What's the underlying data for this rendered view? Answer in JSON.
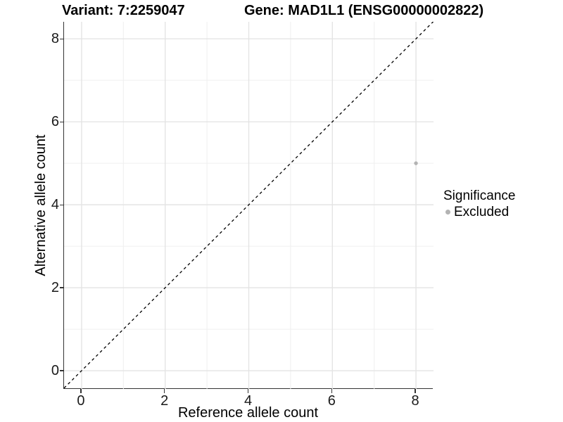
{
  "titles": {
    "variant": "Variant: 7:2259047",
    "gene": "Gene: MAD1L1 (ENSG00000002822)"
  },
  "legend": {
    "title": "Significance",
    "items": [
      {
        "label": "Excluded",
        "color": "#b3b3b3"
      }
    ]
  },
  "colors": {
    "background": "#ffffff",
    "grid_major": "#e4e4e4",
    "grid_minor": "#efefef",
    "axis_line": "#333333",
    "reference_line": "#000000",
    "point": "#b3b3b3",
    "text": "#000000"
  },
  "chart_data": {
    "type": "scatter",
    "title": "Variant: 7:2259047   Gene: MAD1L1 (ENSG00000002822)",
    "xlabel": "Reference allele count",
    "ylabel": "Alternative allele count",
    "xlim": [
      -0.42,
      8.42
    ],
    "ylim": [
      -0.44,
      8.41
    ],
    "x_ticks": [
      0,
      2,
      4,
      6,
      8
    ],
    "y_ticks": [
      0,
      2,
      4,
      6,
      8
    ],
    "x_minor_ticks": [
      1,
      3,
      5,
      7
    ],
    "y_minor_ticks": [
      1,
      3,
      5,
      7
    ],
    "grid": true,
    "legend_position": "right",
    "legend_title": "Significance",
    "reference_line": {
      "type": "abline",
      "slope": 1,
      "intercept": 0,
      "style": "dashed"
    },
    "series": [
      {
        "name": "Excluded",
        "color": "#b3b3b3",
        "points": [
          {
            "x": 8,
            "y": 5
          }
        ]
      }
    ]
  }
}
